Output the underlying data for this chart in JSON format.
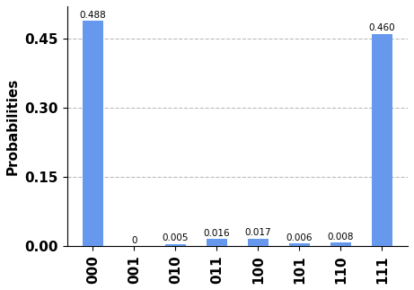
{
  "categories": [
    "000",
    "001",
    "010",
    "011",
    "100",
    "101",
    "110",
    "111"
  ],
  "values": [
    0.488,
    0.0,
    0.005,
    0.016,
    0.017,
    0.006,
    0.008,
    0.46
  ],
  "bar_color": "#6699ee",
  "ylabel": "Probabilities",
  "ylim": [
    0.0,
    0.52
  ],
  "yticks": [
    0.0,
    0.15,
    0.3,
    0.45
  ],
  "grid_color": "#bbbbbb",
  "bar_labels": [
    "0.488",
    "0",
    "0.005",
    "0.016",
    "0.017",
    "0.006",
    "0.008",
    "0.460"
  ],
  "label_fontsize": 7.5,
  "tick_fontsize": 11,
  "ylabel_fontsize": 11,
  "background_color": "#ffffff"
}
